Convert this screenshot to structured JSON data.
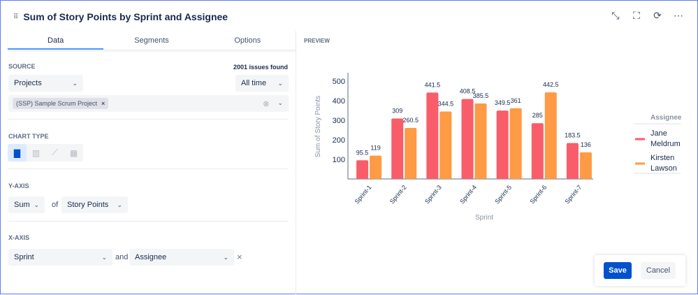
{
  "title": "Sum of Story Points by Sprint and Assignee",
  "tabs": [
    "Data",
    "Segments",
    "Options"
  ],
  "source": {
    "label": "SOURCE",
    "count": "2001 issues found",
    "type": "Projects",
    "time": "All time",
    "project_tag": "(SSP) Sample Scrum Project"
  },
  "chart_type": {
    "label": "CHART TYPE",
    "options": [
      "bar",
      "grouped-bar",
      "line",
      "table"
    ],
    "selected": "bar"
  },
  "y_axis": {
    "label": "Y-AXIS",
    "agg": "Sum",
    "of": "of",
    "field": "Story Points"
  },
  "x_axis": {
    "label": "X-AXIS",
    "field": "Sprint",
    "and": "and",
    "group": "Assignee"
  },
  "preview_label": "PREVIEW",
  "buttons": {
    "save": "Save",
    "cancel": "Cancel"
  },
  "colors": {
    "jane": "#f95d6a",
    "kirsten": "#ff9a45",
    "primary": "#0052cc"
  },
  "chart_data": {
    "type": "bar",
    "categories": [
      "Sprint-1",
      "Sprint-2",
      "Sprint-3",
      "Sprint-4",
      "Sprint-5",
      "Sprint-6",
      "Sprint-7"
    ],
    "series": [
      {
        "name": "Jane Meldrum",
        "values": [
          95.5,
          309,
          441.5,
          408.5,
          349.5,
          285,
          183.5
        ]
      },
      {
        "name": "Kirsten Lawson",
        "values": [
          119,
          260.5,
          344.5,
          385.5,
          361,
          442.5,
          136
        ]
      }
    ],
    "xlabel": "Sprint",
    "ylabel": "Sum of Story Points",
    "yticks": [
      100,
      200,
      300,
      400,
      500
    ],
    "ylim": [
      0,
      500
    ],
    "legend_title": "Assignee",
    "legend_position": "right"
  }
}
